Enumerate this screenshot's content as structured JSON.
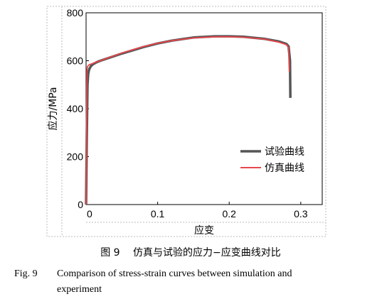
{
  "chart_data": {
    "type": "line",
    "title": "",
    "xlabel": "应变",
    "ylabel": "应力/MPa",
    "xlim": [
      0,
      0.33
    ],
    "ylim": [
      0,
      800
    ],
    "xticks": [
      0,
      0.1,
      0.2,
      0.3
    ],
    "xtick_labels": [
      "0",
      "0.1",
      "0.2",
      "0.3"
    ],
    "yticks": [
      0,
      200,
      400,
      600,
      800
    ],
    "ytick_labels": [
      "0",
      "200",
      "400",
      "600",
      "800"
    ],
    "grid": false,
    "legend_position": "right",
    "series": [
      {
        "name": "试验曲线",
        "color": "#555555",
        "x": [
          0,
          0.001,
          0.002,
          0.003,
          0.004,
          0.005,
          0.007,
          0.01,
          0.015,
          0.02,
          0.03,
          0.05,
          0.08,
          0.1,
          0.12,
          0.15,
          0.18,
          0.2,
          0.22,
          0.25,
          0.27,
          0.28,
          0.283,
          0.285,
          0.2855
        ],
        "y": [
          0,
          280,
          500,
          545,
          560,
          568,
          578,
          586,
          594,
          600,
          610,
          630,
          657,
          672,
          684,
          697,
          702,
          702,
          700,
          691,
          680,
          670,
          660,
          600,
          445
        ]
      },
      {
        "name": "仿真曲线",
        "color": "#e8474c",
        "x": [
          0,
          0.0012,
          0.002,
          0.003,
          0.005,
          0.008,
          0.01,
          0.015,
          0.02,
          0.03,
          0.05,
          0.08,
          0.1,
          0.12,
          0.15,
          0.18,
          0.2,
          0.22,
          0.25,
          0.27,
          0.28,
          0.283,
          0.284
        ],
        "y": [
          0,
          560,
          575,
          580,
          584,
          587,
          590,
          595,
          600,
          611,
          632,
          659,
          673,
          684,
          695,
          700,
          700,
          698,
          690,
          677,
          667,
          655,
          555
        ]
      }
    ]
  },
  "caption": {
    "cn_label": "图 9",
    "cn_text": "仿真与试验的应力−应变曲线对比",
    "en_label": "Fig. 9",
    "en_text_line1": "Comparison of stress-strain curves between simulation and",
    "en_text_line2": "experiment"
  }
}
